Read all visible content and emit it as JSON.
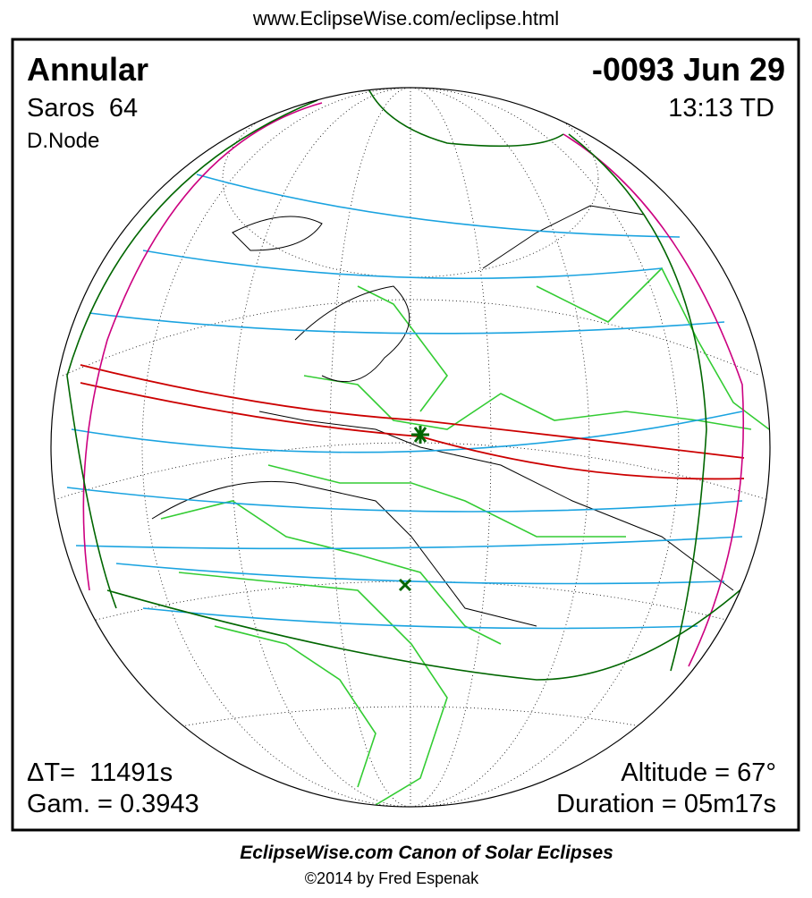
{
  "header": {
    "url": "www.EclipseWise.com/eclipse.html"
  },
  "eclipse": {
    "type": "Annular",
    "saros": "Saros  64",
    "node": "D.Node",
    "date": "-0093 Jun 29",
    "time": "13:13 TD",
    "delta_t": "ΔT=  11491s",
    "gamma": "Gam. = 0.3943",
    "altitude": "Altitude = 67°",
    "duration": "Duration = 05m17s"
  },
  "footer": {
    "title": "EclipseWise.com Canon of Solar Eclipses",
    "credit": "©2014 by Fred Espenak"
  }
}
